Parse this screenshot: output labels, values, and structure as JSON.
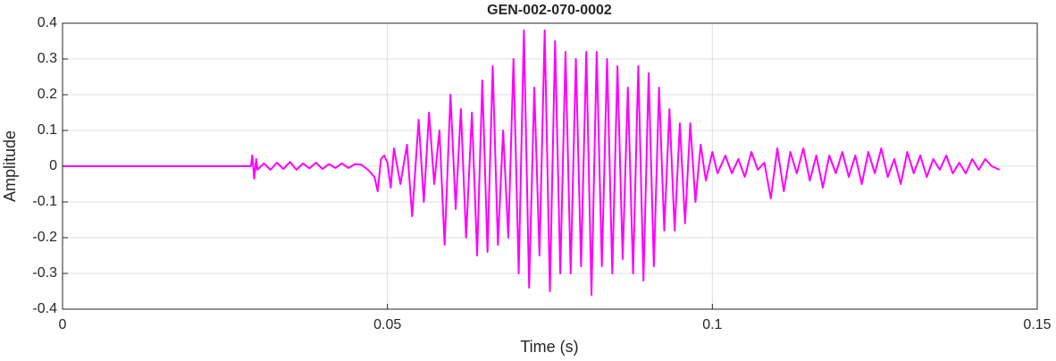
{
  "chart_data": {
    "type": "line",
    "title": "GEN-002-070-0002",
    "x_label": "Time (s)",
    "y_label": "Amplitude",
    "color": "#ff00ff",
    "grid": true,
    "xlim": [
      0,
      0.15
    ],
    "xticks": [
      0,
      0.05,
      0.1,
      0.15
    ],
    "ylim": [
      -0.4,
      0.4
    ],
    "yticks": [
      -0.4,
      -0.3,
      -0.2,
      -0.1,
      0,
      0.1,
      0.2,
      0.3,
      0.4
    ],
    "x": [
      0,
      0.029,
      0.0292,
      0.0295,
      0.0298,
      0.03,
      0.031,
      0.032,
      0.033,
      0.034,
      0.035,
      0.036,
      0.037,
      0.038,
      0.039,
      0.04,
      0.041,
      0.042,
      0.043,
      0.044,
      0.045,
      0.046,
      0.047,
      0.048,
      0.0485,
      0.049,
      0.0495,
      0.05,
      0.0505,
      0.051,
      0.052,
      0.053,
      0.0538,
      0.0548,
      0.0556,
      0.0564,
      0.0572,
      0.058,
      0.0588,
      0.0597,
      0.0605,
      0.0613,
      0.0621,
      0.063,
      0.0638,
      0.0646,
      0.0654,
      0.0662,
      0.067,
      0.0678,
      0.0686,
      0.0694,
      0.0702,
      0.071,
      0.0718,
      0.0726,
      0.0734,
      0.0742,
      0.075,
      0.0758,
      0.0766,
      0.0774,
      0.0782,
      0.079,
      0.0798,
      0.0806,
      0.0814,
      0.0822,
      0.083,
      0.0838,
      0.0846,
      0.0854,
      0.0862,
      0.087,
      0.0878,
      0.0886,
      0.0894,
      0.0902,
      0.091,
      0.0918,
      0.0926,
      0.0934,
      0.0942,
      0.095,
      0.0958,
      0.0966,
      0.0974,
      0.0982,
      0.099,
      0.1,
      0.1008,
      0.102,
      0.103,
      0.104,
      0.105,
      0.106,
      0.107,
      0.108,
      0.109,
      0.11,
      0.111,
      0.112,
      0.113,
      0.114,
      0.115,
      0.116,
      0.117,
      0.118,
      0.119,
      0.12,
      0.121,
      0.122,
      0.123,
      0.124,
      0.125,
      0.126,
      0.127,
      0.128,
      0.129,
      0.13,
      0.131,
      0.132,
      0.133,
      0.134,
      0.135,
      0.136,
      0.137,
      0.138,
      0.139,
      0.14,
      0.141,
      0.142,
      0.143,
      0.1442
    ],
    "values": [
      0,
      0,
      0.03,
      -0.035,
      0.02,
      -0.01,
      0.008,
      -0.01,
      0.01,
      -0.008,
      0.012,
      -0.01,
      0.008,
      -0.006,
      0.01,
      -0.008,
      0.006,
      -0.005,
      0.008,
      -0.005,
      0.006,
      0.004,
      -0.01,
      -0.03,
      -0.07,
      0.02,
      0.03,
      0.01,
      -0.06,
      0.05,
      -0.05,
      0.06,
      -0.14,
      0.13,
      -0.1,
      0.15,
      -0.05,
      0.1,
      -0.22,
      0.2,
      -0.12,
      0.16,
      -0.2,
      0.15,
      -0.25,
      0.24,
      -0.24,
      0.28,
      -0.22,
      0.1,
      -0.2,
      0.3,
      -0.3,
      0.38,
      -0.34,
      0.22,
      -0.25,
      0.38,
      -0.35,
      0.35,
      -0.3,
      0.32,
      -0.3,
      0.3,
      -0.28,
      0.32,
      -0.36,
      0.32,
      -0.28,
      0.3,
      -0.3,
      0.28,
      -0.26,
      0.22,
      -0.3,
      0.28,
      -0.32,
      0.26,
      -0.28,
      0.22,
      -0.18,
      0.16,
      -0.18,
      0.12,
      -0.16,
      0.12,
      -0.1,
      0.06,
      -0.04,
      0.04,
      -0.02,
      0.03,
      -0.02,
      0.02,
      -0.03,
      0.04,
      -0.01,
      0.01,
      -0.09,
      0.05,
      -0.07,
      0.04,
      -0.02,
      0.05,
      -0.04,
      0.03,
      -0.06,
      0.03,
      -0.02,
      0.04,
      -0.03,
      0.03,
      -0.05,
      0.04,
      -0.02,
      0.05,
      -0.03,
      0.02,
      -0.05,
      0.04,
      -0.02,
      0.03,
      -0.03,
      0.02,
      -0.01,
      0.03,
      -0.02,
      0.01,
      -0.02,
      0.02,
      -0.01,
      0.02,
      0,
      -0.01
    ]
  }
}
